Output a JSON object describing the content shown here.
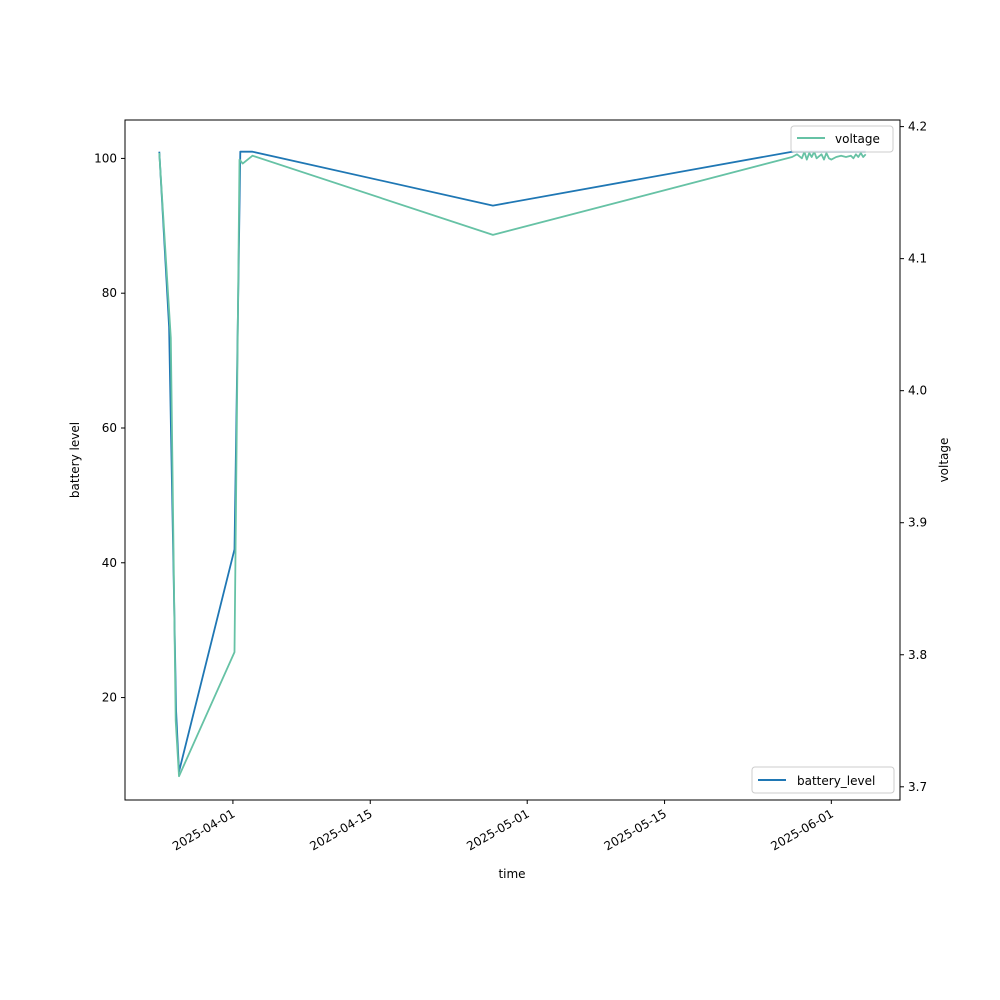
{
  "chart_data": {
    "type": "line",
    "xlabel": "time",
    "ylabel_left": "battery level",
    "ylabel_right": "voltage",
    "x_ticks": [
      "2025-04-01",
      "2025-04-15",
      "2025-05-01",
      "2025-05-15",
      "2025-06-01"
    ],
    "x_range": [
      "2025-03-21",
      "2025-06-08"
    ],
    "y_left": {
      "range": [
        4.8,
        105.7
      ],
      "ticks": [
        20,
        40,
        60,
        80,
        100
      ]
    },
    "y_right": {
      "range": [
        3.69,
        4.205
      ],
      "ticks": [
        "3.7",
        "3.8",
        "3.9",
        "4.0",
        "4.1",
        "4.2"
      ]
    },
    "grid": false,
    "series": [
      {
        "name": "battery_level",
        "axis": "left",
        "color": "#1f77b4",
        "legend_position": "lower right",
        "points": [
          [
            "2025-03-24 12:00",
            101
          ],
          [
            "2025-03-25 12:00",
            75
          ],
          [
            "2025-03-26 05:00",
            18
          ],
          [
            "2025-03-26 12:00",
            9
          ],
          [
            "2025-04-01 04:00",
            42
          ],
          [
            "2025-04-01 18:00",
            101
          ],
          [
            "2025-04-03 00:00",
            101
          ],
          [
            "2025-04-27 12:00",
            93
          ],
          [
            "2025-05-28 00:00",
            101
          ],
          [
            "2025-06-04 12:00",
            101
          ]
        ]
      },
      {
        "name": "voltage",
        "axis": "right",
        "color": "#66c2a5",
        "legend_position": "upper right",
        "points": [
          [
            "2025-03-24 12:00",
            4.18
          ],
          [
            "2025-03-25 16:00",
            4.04
          ],
          [
            "2025-03-26 04:00",
            3.75
          ],
          [
            "2025-03-26 12:00",
            3.708
          ],
          [
            "2025-04-01 04:00",
            3.802
          ],
          [
            "2025-04-01 16:00",
            4.175
          ],
          [
            "2025-04-02 00:00",
            4.172
          ],
          [
            "2025-04-03 00:00",
            4.178
          ],
          [
            "2025-04-27 12:00",
            4.118
          ],
          [
            "2025-05-28 00:00",
            4.177
          ],
          [
            "2025-05-28 12:00",
            4.179
          ],
          [
            "2025-05-29 00:00",
            4.176
          ],
          [
            "2025-05-29 06:00",
            4.181
          ],
          [
            "2025-05-29 12:00",
            4.175
          ],
          [
            "2025-05-29 18:00",
            4.18
          ],
          [
            "2025-05-30 00:00",
            4.177
          ],
          [
            "2025-05-30 06:00",
            4.181
          ],
          [
            "2025-05-30 12:00",
            4.176
          ],
          [
            "2025-05-31 00:00",
            4.179
          ],
          [
            "2025-05-31 06:00",
            4.175
          ],
          [
            "2025-05-31 12:00",
            4.18
          ],
          [
            "2025-05-31 18:00",
            4.176
          ],
          [
            "2025-06-01 00:00",
            4.175
          ],
          [
            "2025-06-01 12:00",
            4.177
          ],
          [
            "2025-06-02 00:00",
            4.178
          ],
          [
            "2025-06-02 12:00",
            4.177
          ],
          [
            "2025-06-03 00:00",
            4.178
          ],
          [
            "2025-06-03 06:00",
            4.176
          ],
          [
            "2025-06-03 12:00",
            4.179
          ],
          [
            "2025-06-03 18:00",
            4.177
          ],
          [
            "2025-06-04 00:00",
            4.18
          ],
          [
            "2025-06-04 06:00",
            4.177
          ],
          [
            "2025-06-04 12:00",
            4.179
          ]
        ]
      }
    ]
  }
}
